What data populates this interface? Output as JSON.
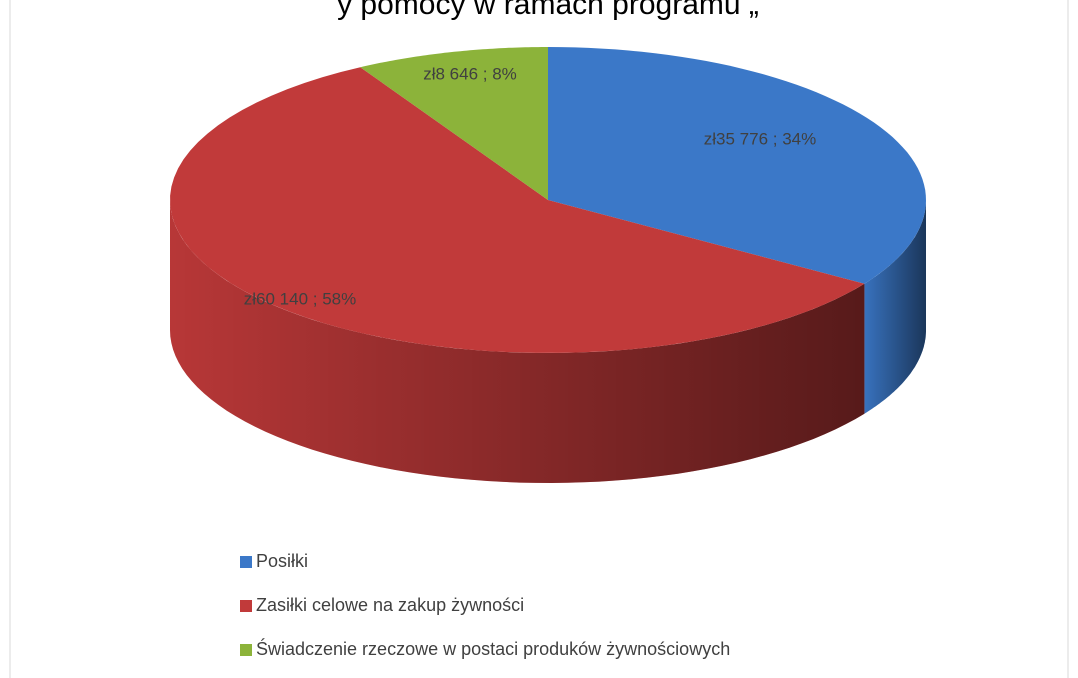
{
  "chart_data": {
    "type": "pie",
    "title": "y pomocy w ramach programu „",
    "categories": [
      "Posiłki",
      "Zasiłki celowe na zakup żywności",
      "Świadczenie rzeczowe w postaci produków żywnościowych"
    ],
    "values": [
      35776,
      60140,
      8646
    ],
    "value_labels": [
      "zł35 776 ; 34%",
      "zł60 140 ; 58%",
      "zł8 646 ; 8%"
    ],
    "colors": [
      "#3b78c8",
      "#c13a3a",
      "#8cb33a"
    ],
    "legend": "bottom"
  }
}
